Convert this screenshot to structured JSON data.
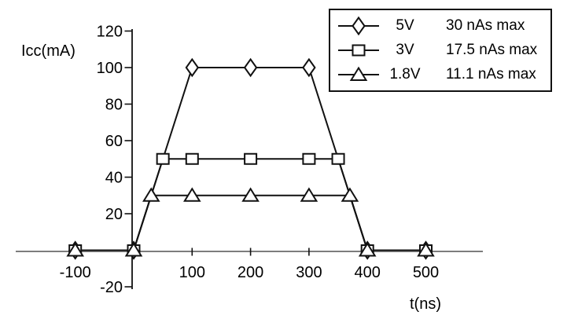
{
  "chart_data": {
    "type": "line",
    "title": "",
    "xlabel": "t(ns)",
    "ylabel": "Icc(mA)",
    "xlim": [
      -200,
      600
    ],
    "ylim": [
      -20,
      120
    ],
    "x_ticks": [
      -100,
      100,
      200,
      300,
      400,
      500
    ],
    "y_ticks": [
      120,
      100,
      80,
      60,
      40,
      20,
      -20
    ],
    "grid": false,
    "legend_position": "top-right",
    "series": [
      {
        "name": "5V",
        "max_label": "30 nAs max",
        "marker": "diamond",
        "points": [
          [
            -100,
            0
          ],
          [
            0,
            0
          ],
          [
            100,
            100
          ],
          [
            200,
            100
          ],
          [
            300,
            100
          ],
          [
            400,
            0
          ],
          [
            500,
            0
          ]
        ]
      },
      {
        "name": "3V",
        "max_label": "17.5 nAs max",
        "marker": "square",
        "points": [
          [
            -100,
            0
          ],
          [
            0,
            0
          ],
          [
            50,
            50
          ],
          [
            100,
            50
          ],
          [
            200,
            50
          ],
          [
            300,
            50
          ],
          [
            350,
            50
          ],
          [
            400,
            0
          ],
          [
            500,
            0
          ]
        ]
      },
      {
        "name": "1.8V",
        "max_label": "11.1 nAs max",
        "marker": "triangle",
        "points": [
          [
            -100,
            0
          ],
          [
            0,
            0
          ],
          [
            30,
            30
          ],
          [
            100,
            30
          ],
          [
            200,
            30
          ],
          [
            300,
            30
          ],
          [
            370,
            30
          ],
          [
            400,
            0
          ],
          [
            500,
            0
          ]
        ]
      }
    ],
    "colors": {
      "line": "#111111",
      "x_axis": "#7d7d7d",
      "y_axis": "#111111",
      "text": "#000000",
      "background": "#ffffff",
      "marker_fill": "#ffffff"
    }
  }
}
